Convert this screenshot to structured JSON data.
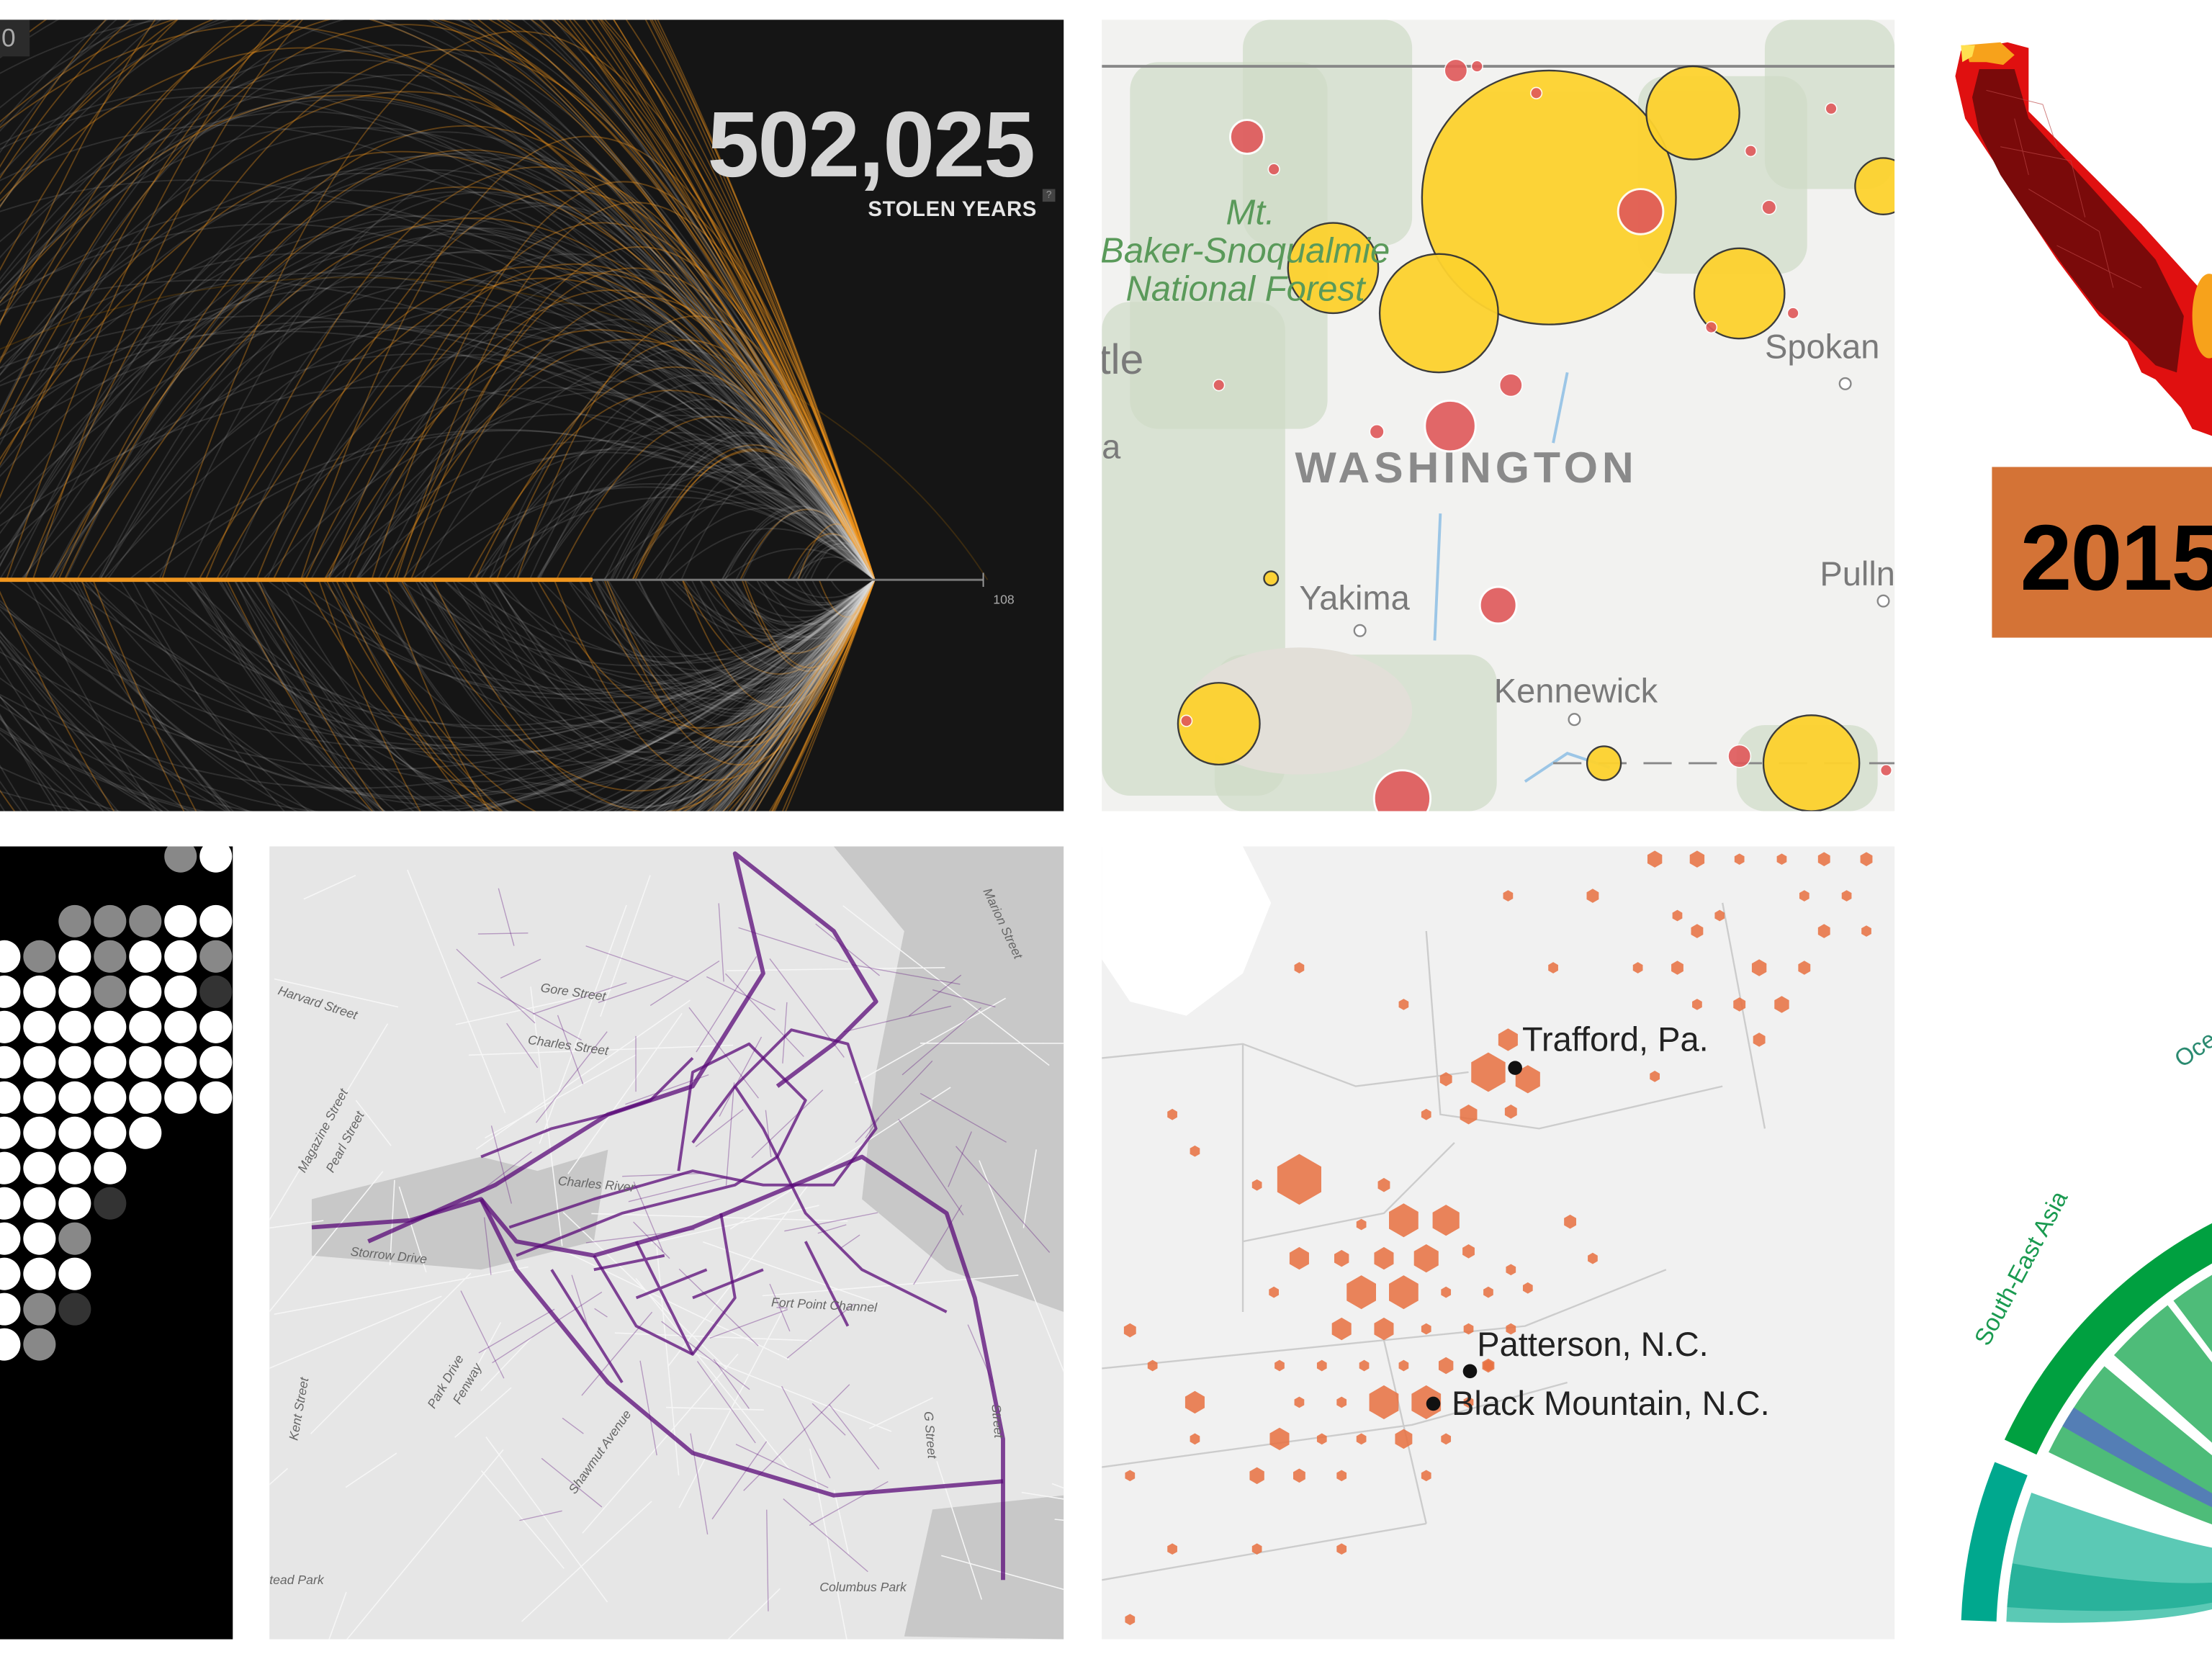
{
  "arc_chart": {
    "counter_tag": "0",
    "total": "502,025",
    "total_label": "STOLEN YEARS",
    "help": "?",
    "axis_max_label": "108"
  },
  "washington_map": {
    "forest_label_line1": "Mt.",
    "forest_label_line2": "Baker-Snoqualmie",
    "forest_label_line3": "National Forest",
    "state_label": "WASHINGTON",
    "cities": [
      "tle",
      "a",
      "Spokan",
      "Yakima",
      "Pulln",
      "Kennewick"
    ]
  },
  "california_map": {
    "year": "2015"
  },
  "boston_map": {
    "street_labels": [
      "Harvard Street",
      "Gore Street",
      "Charles Street",
      "Magazine Street",
      "Pearl Street",
      "Charles River",
      "Storrow Drive",
      "Fort Point Channel",
      "Park Drive",
      "Fenway",
      "Shawmut Avenue",
      "Kent Street",
      "G Street",
      "Street",
      "Marion Street",
      "Columbus Park",
      "tead Park"
    ]
  },
  "hex_map": {
    "locations": [
      "Trafford, Pa.",
      "Patterson, N.C.",
      "Black Mountain, N.C."
    ]
  },
  "chord": {
    "regions": [
      "South-East Asia",
      "Ocea"
    ]
  },
  "colors": {
    "arc_orange": "#f0961e",
    "bubble_yellow": "#fdd22e",
    "bubble_red": "#e0585a",
    "boston_purple": "#5a0a78",
    "hex_orange": "#e8703f",
    "year_box": "#d47336",
    "chord_green": "#00a040",
    "chord_teal": "#00a88e"
  }
}
